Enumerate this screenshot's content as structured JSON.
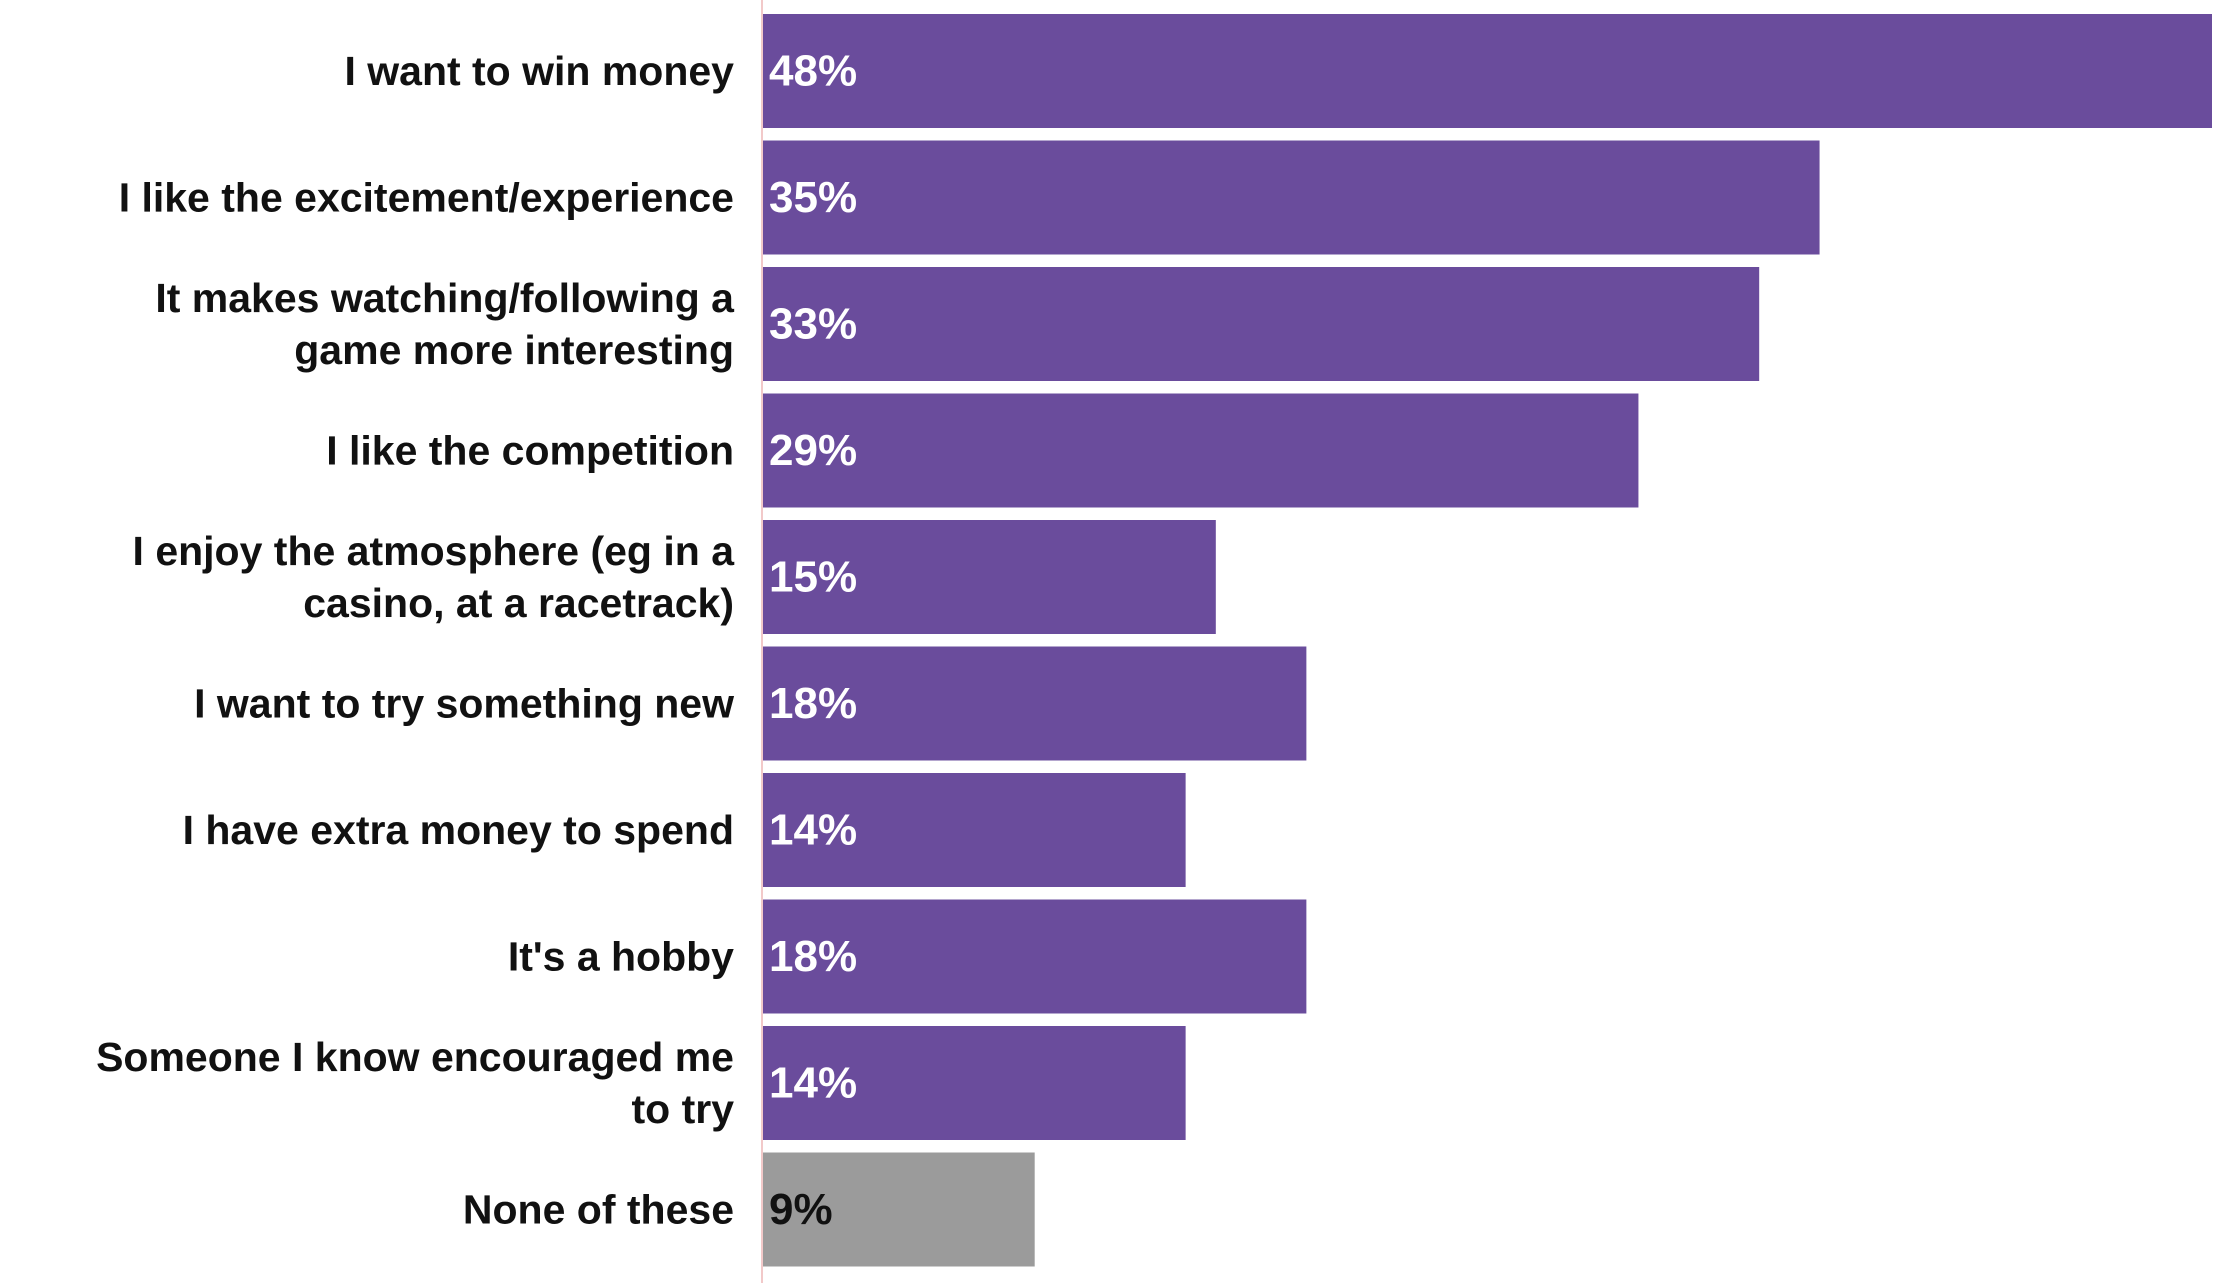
{
  "chart_data": {
    "type": "bar",
    "orientation": "horizontal",
    "title": "",
    "xlabel": "",
    "ylabel": "",
    "xlim": [
      0,
      48
    ],
    "grid": false,
    "legend": "none",
    "value_format": "percent",
    "colors": {
      "primary": "#6a4c9c",
      "neutral": "#9b9b9b",
      "axis": "#f2c9c9",
      "label_on_primary": "#ffffff",
      "label_on_neutral": "#111111"
    },
    "categories": [
      "I want to win money",
      "I like the excitement/experience",
      "It makes watching/following a game more interesting",
      "I like the competition",
      "I enjoy the atmosphere (eg in a casino, at a racetrack)",
      "I want to try something new",
      "I have extra money to spend",
      "It's a hobby",
      "Someone I know encouraged me to try",
      "None of these"
    ],
    "category_lines": [
      [
        "I want to win money"
      ],
      [
        "I like the excitement/experience"
      ],
      [
        "It makes watching/following a",
        "game more interesting"
      ],
      [
        "I like the competition"
      ],
      [
        "I enjoy the atmosphere (eg in a",
        "casino, at a racetrack)"
      ],
      [
        "I want to try something new"
      ],
      [
        "I have extra money to spend"
      ],
      [
        "It's a hobby"
      ],
      [
        "Someone I know encouraged me",
        "to try"
      ],
      [
        "None of these"
      ]
    ],
    "values": [
      48,
      35,
      33,
      29,
      15,
      18,
      14,
      18,
      14,
      9
    ],
    "value_labels": [
      "48%",
      "35%",
      "33%",
      "29%",
      "15%",
      "18%",
      "14%",
      "18%",
      "14%",
      "9%"
    ],
    "bar_color_keys": [
      "primary",
      "primary",
      "primary",
      "primary",
      "primary",
      "primary",
      "primary",
      "primary",
      "primary",
      "neutral"
    ]
  }
}
